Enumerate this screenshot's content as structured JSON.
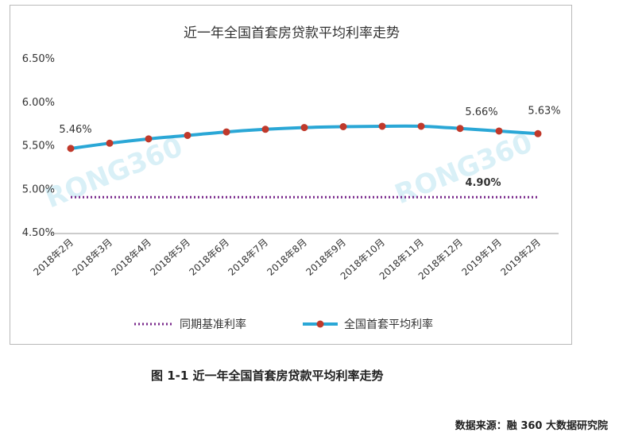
{
  "chart_data": {
    "type": "line",
    "title": "近一年全国首套房贷款平均利率走势",
    "categories": [
      "2018年2月",
      "2018年3月",
      "2018年4月",
      "2018年5月",
      "2018年6月",
      "2018年7月",
      "2018年8月",
      "2018年9月",
      "2018年10月",
      "2018年11月",
      "2018年12月",
      "2019年1月",
      "2019年2月"
    ],
    "series": [
      {
        "name": "同期基准利率",
        "color": "#7a2a8c",
        "style": "dotted",
        "values": [
          4.9,
          4.9,
          4.9,
          4.9,
          4.9,
          4.9,
          4.9,
          4.9,
          4.9,
          4.9,
          4.9,
          4.9,
          4.9
        ]
      },
      {
        "name": "全国首套平均利率",
        "color": "#2aa7d6",
        "marker_color": "#c0392b",
        "style": "solid-with-markers",
        "values": [
          5.46,
          5.52,
          5.57,
          5.61,
          5.65,
          5.68,
          5.7,
          5.71,
          5.715,
          5.715,
          5.69,
          5.66,
          5.63
        ]
      }
    ],
    "yticks": [
      "4.50%",
      "5.00%",
      "5.50%",
      "6.00%",
      "6.50%"
    ],
    "ylim": [
      4.5,
      6.5
    ],
    "data_labels": [
      {
        "series": 1,
        "index": 0,
        "text": "5.46%"
      },
      {
        "series": 1,
        "index": 11,
        "text": "5.66%"
      },
      {
        "series": 1,
        "index": 12,
        "text": "5.63%"
      },
      {
        "series": 0,
        "index": 11,
        "text": "4.90%"
      }
    ],
    "legend_position": "bottom",
    "grid": false,
    "watermark": "RONG360"
  },
  "caption": "图 1-1  近一年全国首套房贷款平均利率走势",
  "source": "数据来源：融 360 大数据研究院"
}
